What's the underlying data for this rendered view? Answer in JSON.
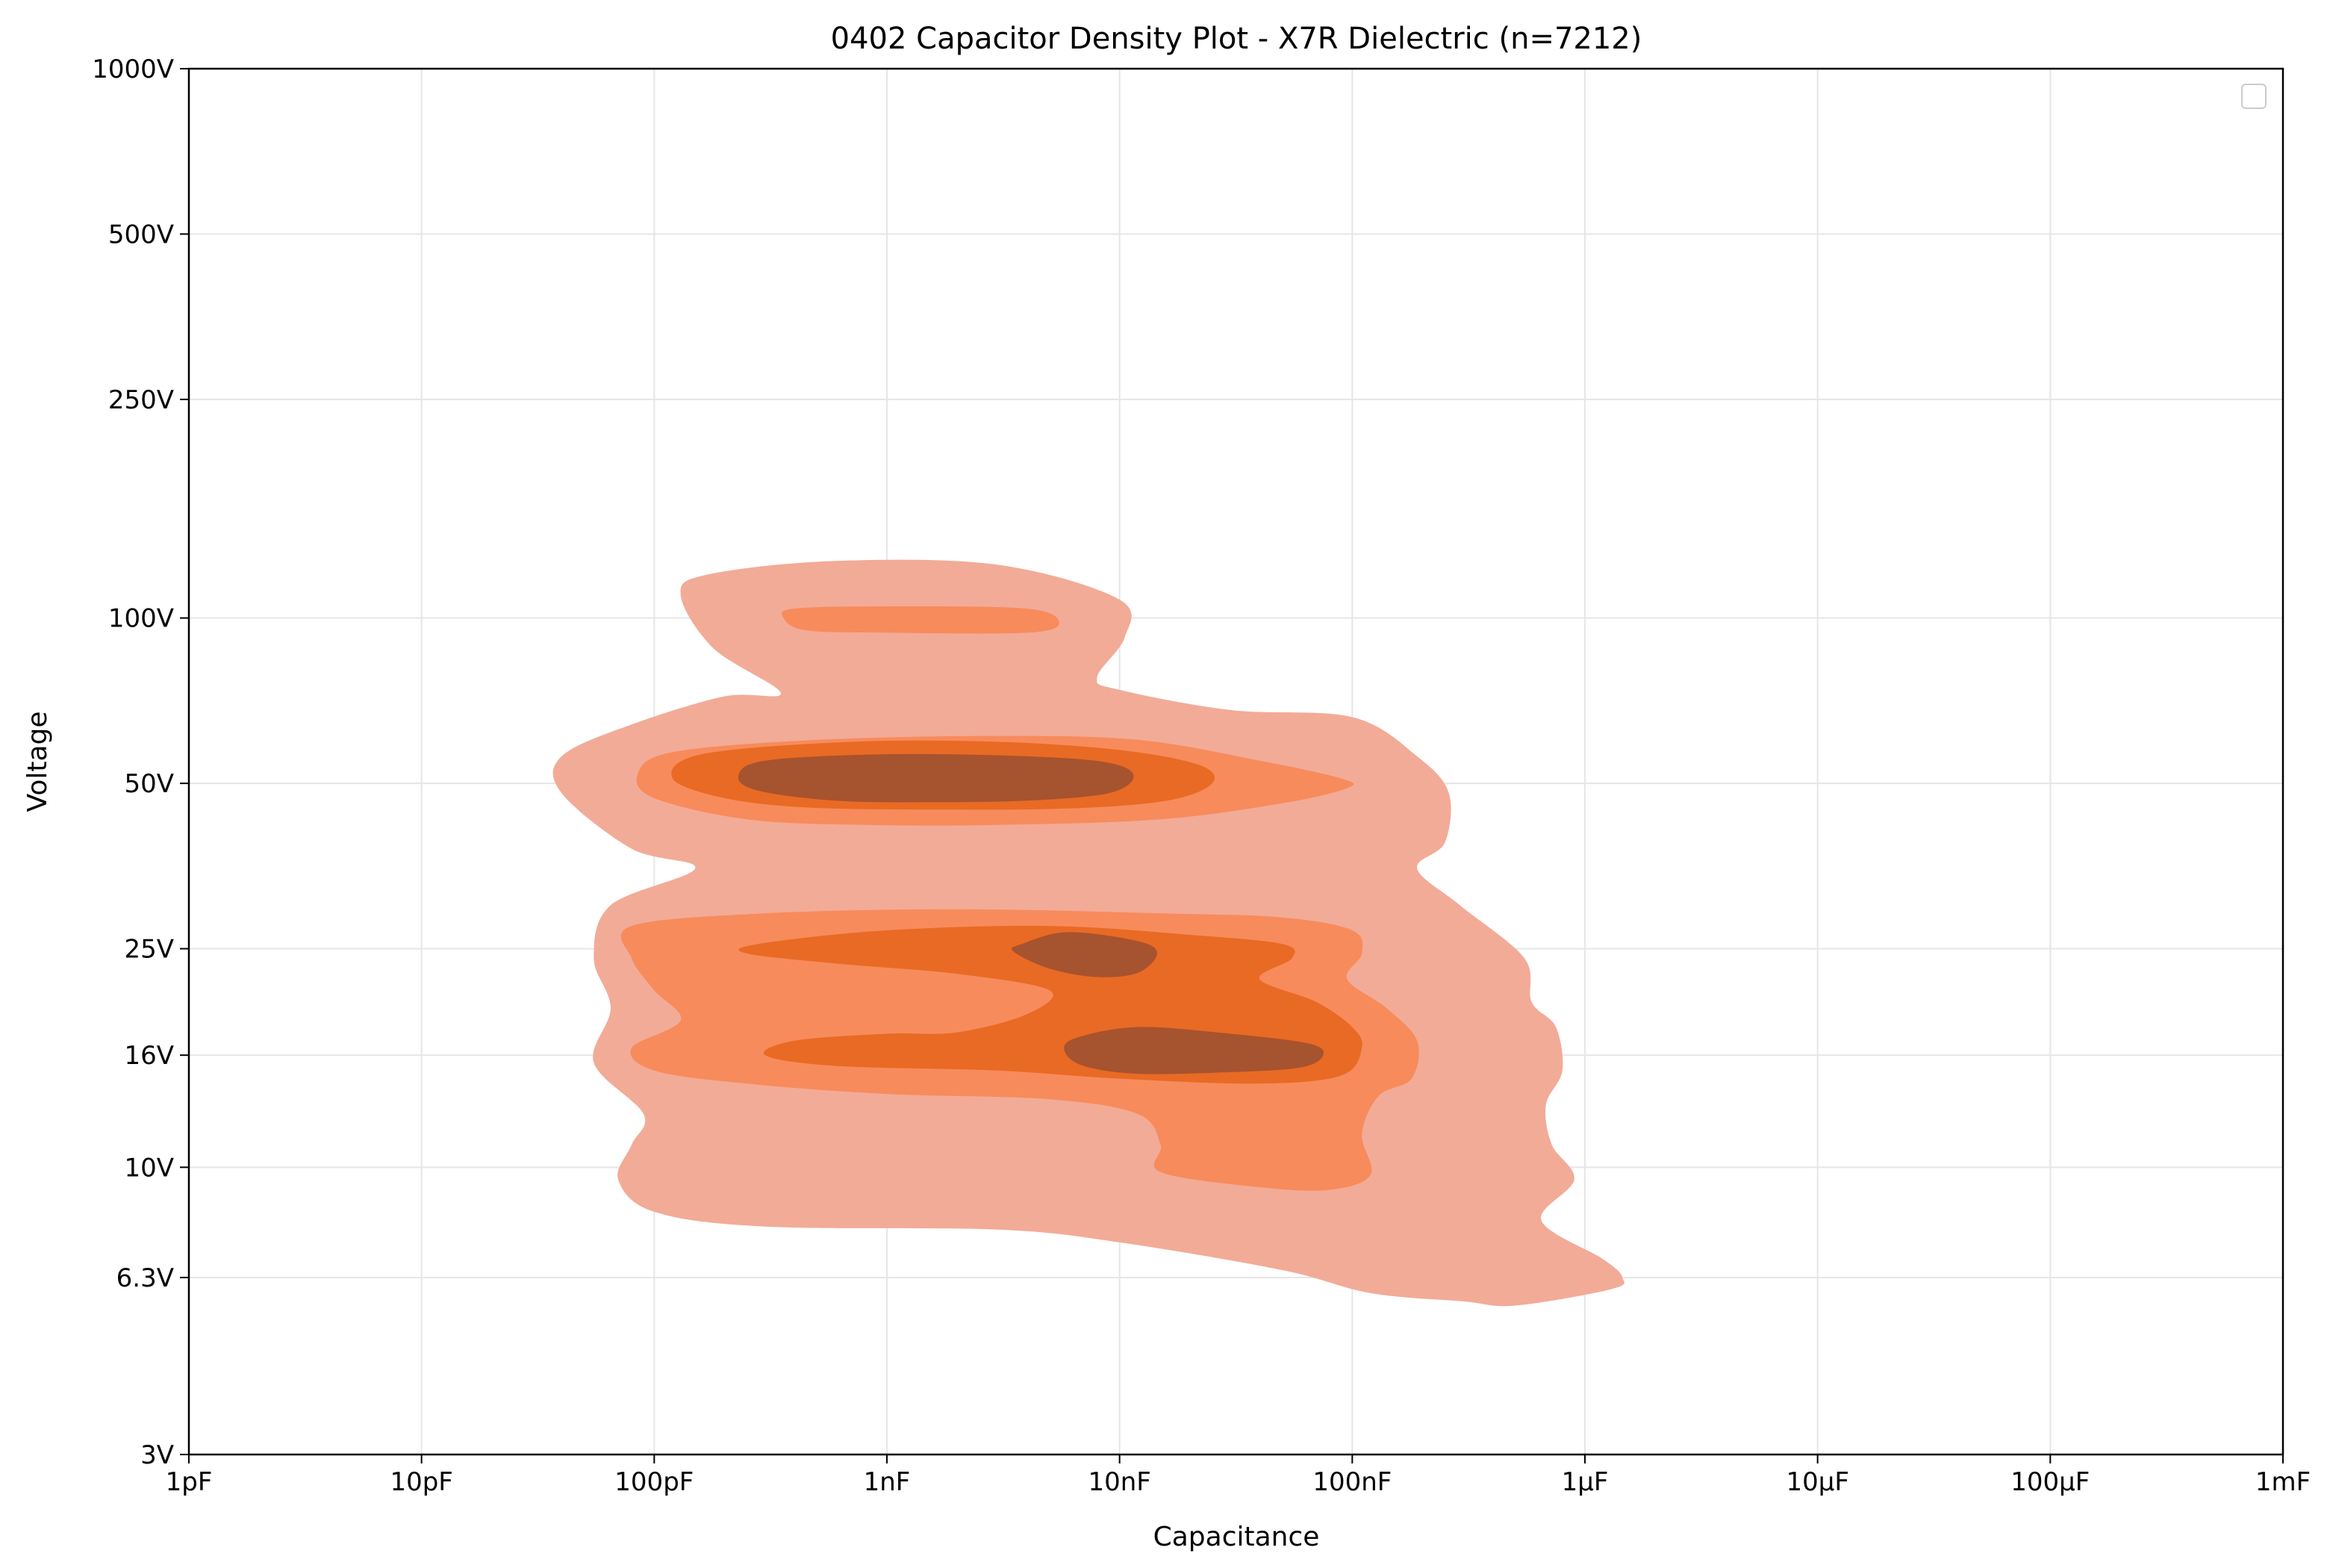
{
  "chart_data": {
    "type": "density-contour",
    "title": "0402 Capacitor Density Plot - X7R Dielectric (n=7212)",
    "xlabel": "Capacitance",
    "ylabel": "Voltage",
    "x_scale": "log",
    "y_scale": "log",
    "x_unit": "F",
    "y_unit": "V",
    "xlim": [
      1e-12,
      0.001
    ],
    "ylim": [
      3,
      1000
    ],
    "x_ticks": [
      {
        "value": 1e-12,
        "label": "1pF"
      },
      {
        "value": 1e-11,
        "label": "10pF"
      },
      {
        "value": 1e-10,
        "label": "100pF"
      },
      {
        "value": 1e-09,
        "label": "1nF"
      },
      {
        "value": 1e-08,
        "label": "10nF"
      },
      {
        "value": 1e-07,
        "label": "100nF"
      },
      {
        "value": 1e-06,
        "label": "1µF"
      },
      {
        "value": 1e-05,
        "label": "10µF"
      },
      {
        "value": 0.0001,
        "label": "100µF"
      },
      {
        "value": 0.001,
        "label": "1mF"
      }
    ],
    "y_ticks": [
      {
        "value": 3,
        "label": "3V"
      },
      {
        "value": 6.3,
        "label": "6.3V"
      },
      {
        "value": 10,
        "label": "10V"
      },
      {
        "value": 16,
        "label": "16V"
      },
      {
        "value": 25,
        "label": "25V"
      },
      {
        "value": 50,
        "label": "50V"
      },
      {
        "value": 100,
        "label": "100V"
      },
      {
        "value": 250,
        "label": "250V"
      },
      {
        "value": 500,
        "label": "500V"
      },
      {
        "value": 1000,
        "label": "1000V"
      }
    ],
    "grid": true,
    "legend": {
      "placement": "top-right",
      "entries": []
    },
    "levels": [
      {
        "level": 1,
        "color": "#f2ab97"
      },
      {
        "level": 2,
        "color": "#f78b5c"
      },
      {
        "level": 3,
        "color": "#e96a24"
      },
      {
        "level": 4,
        "color": "#a6532f"
      }
    ],
    "regions": [
      {
        "level": 1,
        "name": "outer-upper-blob",
        "boundary": [
          [
            1.7e-10,
            120
          ],
          [
            6e-10,
            127
          ],
          [
            3e-09,
            125
          ],
          [
            1e-08,
            108
          ],
          [
            1.05e-08,
            92
          ],
          [
            8e-09,
            78
          ],
          [
            1e-08,
            74
          ],
          [
            3e-08,
            68
          ],
          [
            1e-07,
            66
          ],
          [
            1.9e-07,
            56
          ],
          [
            2.6e-07,
            48
          ],
          [
            2.5e-07,
            39
          ],
          [
            1.9e-07,
            35
          ],
          [
            2.9e-07,
            30
          ],
          [
            5.5e-07,
            24
          ],
          [
            5.9e-07,
            20
          ],
          [
            7.5e-07,
            18
          ],
          [
            8e-07,
            15
          ],
          [
            6.8e-07,
            13
          ],
          [
            7.2e-07,
            11
          ],
          [
            9e-07,
            9.5
          ],
          [
            6.5e-07,
            8
          ],
          [
            1.2e-06,
            6.8
          ],
          [
            1.45e-06,
            6.3
          ],
          [
            1.3e-06,
            6.0
          ],
          [
            5e-07,
            5.6
          ],
          [
            3e-07,
            5.7
          ],
          [
            1.2e-07,
            5.9
          ],
          [
            5e-08,
            6.5
          ],
          [
            1e-08,
            7.3
          ],
          [
            3e-09,
            7.7
          ],
          [
            3e-10,
            7.8
          ],
          [
            1e-10,
            8.3
          ],
          [
            7e-11,
            9.5
          ],
          [
            8e-11,
            11
          ],
          [
            9e-11,
            12.5
          ],
          [
            5.5e-11,
            15.5
          ],
          [
            6.5e-11,
            19.5
          ],
          [
            5.5e-11,
            24
          ],
          [
            6.5e-11,
            30
          ],
          [
            1.5e-10,
            35
          ],
          [
            8e-11,
            38
          ],
          [
            4e-11,
            48
          ],
          [
            4e-11,
            56
          ],
          [
            8e-11,
            64
          ],
          [
            2e-10,
            72
          ],
          [
            3.5e-10,
            73
          ],
          [
            1.8e-10,
            88
          ],
          [
            1.3e-10,
            110
          ]
        ]
      },
      {
        "level": 2,
        "name": "mid-upper-patch",
        "boundary": [
          [
            4e-10,
            104
          ],
          [
            1e-09,
            105
          ],
          [
            4e-09,
            104
          ],
          [
            5.5e-09,
            98
          ],
          [
            4e-09,
            94
          ],
          [
            1e-09,
            94
          ],
          [
            4.5e-10,
            95
          ],
          [
            3.6e-10,
            100
          ]
        ]
      },
      {
        "level": 2,
        "name": "mid-50V-band",
        "boundary": [
          [
            1.2e-10,
            57
          ],
          [
            5e-10,
            60
          ],
          [
            3e-09,
            61
          ],
          [
            1.2e-08,
            60
          ],
          [
            4e-08,
            55
          ],
          [
            9e-08,
            51
          ],
          [
            9.5e-08,
            49
          ],
          [
            5e-08,
            46
          ],
          [
            1.5e-08,
            43
          ],
          [
            3e-09,
            42
          ],
          [
            8e-10,
            42
          ],
          [
            2.5e-10,
            43
          ],
          [
            1e-10,
            47
          ],
          [
            8.5e-11,
            52
          ]
        ]
      },
      {
        "level": 2,
        "name": "mid-lower-band",
        "boundary": [
          [
            8e-11,
            27.5
          ],
          [
            3e-10,
            29
          ],
          [
            2e-09,
            29.5
          ],
          [
            1.5e-08,
            29
          ],
          [
            5e-08,
            28.5
          ],
          [
            1e-07,
            27
          ],
          [
            1.1e-07,
            24.5
          ],
          [
            9.5e-08,
            22
          ],
          [
            1.4e-07,
            19.5
          ],
          [
            1.9e-07,
            17
          ],
          [
            1.8e-07,
            14.5
          ],
          [
            1.3e-07,
            13.5
          ],
          [
            1.1e-07,
            11.5
          ],
          [
            1.2e-07,
            9.7
          ],
          [
            8e-08,
            9.1
          ],
          [
            4e-08,
            9.2
          ],
          [
            1.5e-08,
            9.8
          ],
          [
            1.5e-08,
            11
          ],
          [
            1.2e-08,
            12.5
          ],
          [
            5e-09,
            13.3
          ],
          [
            1e-09,
            13.6
          ],
          [
            2.5e-10,
            14.2
          ],
          [
            1e-10,
            15
          ],
          [
            8e-11,
            16.5
          ],
          [
            1.3e-10,
            18.5
          ],
          [
            1e-10,
            21
          ],
          [
            8e-11,
            24
          ]
        ]
      },
      {
        "level": 3,
        "name": "inner-50V-band",
        "boundary": [
          [
            1.6e-10,
            56.5
          ],
          [
            7e-10,
            59.5
          ],
          [
            3e-09,
            59.5
          ],
          [
            1e-08,
            57.5
          ],
          [
            2.2e-08,
            54
          ],
          [
            2.5e-08,
            50
          ],
          [
            1.6e-08,
            46.5
          ],
          [
            6e-09,
            45
          ],
          [
            1.5e-09,
            44.8
          ],
          [
            4.5e-10,
            45.2
          ],
          [
            2e-10,
            47
          ],
          [
            1.2e-10,
            51
          ]
        ]
      },
      {
        "level": 3,
        "name": "inner-lower-band",
        "boundary": [
          [
            2.8e-10,
            25.5
          ],
          [
            1e-09,
            27
          ],
          [
            5e-09,
            27.5
          ],
          [
            2e-08,
            26.5
          ],
          [
            5e-08,
            25.5
          ],
          [
            5.5e-08,
            24
          ],
          [
            4e-08,
            22
          ],
          [
            7e-08,
            20
          ],
          [
            1e-07,
            18
          ],
          [
            1.1e-07,
            16.5
          ],
          [
            9e-08,
            14.7
          ],
          [
            4e-08,
            14.2
          ],
          [
            1e-08,
            14.5
          ],
          [
            3e-09,
            15
          ],
          [
            6e-10,
            15.3
          ],
          [
            3e-10,
            16
          ],
          [
            4e-10,
            17
          ],
          [
            1e-09,
            17.5
          ],
          [
            2e-09,
            17.6
          ],
          [
            4e-09,
            19
          ],
          [
            5e-09,
            21
          ],
          [
            2e-09,
            22.5
          ],
          [
            6e-10,
            23.5
          ],
          [
            2.5e-10,
            24.5
          ]
        ]
      },
      {
        "level": 4,
        "name": "core-50V",
        "boundary": [
          [
            3e-10,
            55
          ],
          [
            1e-09,
            56.5
          ],
          [
            4e-09,
            56
          ],
          [
            9e-09,
            54.5
          ],
          [
            1.15e-08,
            51.5
          ],
          [
            9e-09,
            48
          ],
          [
            4e-09,
            46.5
          ],
          [
            1.5e-09,
            46.2
          ],
          [
            6e-10,
            46.5
          ],
          [
            2.8e-10,
            48.5
          ],
          [
            2.3e-10,
            51.5
          ]
        ]
      },
      {
        "level": 4,
        "name": "core-25V",
        "boundary": [
          [
            3.8e-09,
            25.5
          ],
          [
            6e-09,
            26.8
          ],
          [
            1.2e-08,
            25.8
          ],
          [
            1.45e-08,
            24.5
          ],
          [
            1.2e-08,
            22.6
          ],
          [
            8e-09,
            22.2
          ],
          [
            5e-09,
            23
          ],
          [
            3.5e-09,
            24.7
          ]
        ]
      },
      {
        "level": 4,
        "name": "core-16V",
        "boundary": [
          [
            6.5e-09,
            17.2
          ],
          [
            1.2e-08,
            18
          ],
          [
            3e-08,
            17.5
          ],
          [
            6.5e-08,
            16.8
          ],
          [
            7.5e-08,
            16
          ],
          [
            6e-08,
            15.2
          ],
          [
            3e-08,
            14.9
          ],
          [
            1.2e-08,
            14.8
          ],
          [
            7e-09,
            15.3
          ],
          [
            5.8e-09,
            16.3
          ]
        ]
      }
    ]
  }
}
